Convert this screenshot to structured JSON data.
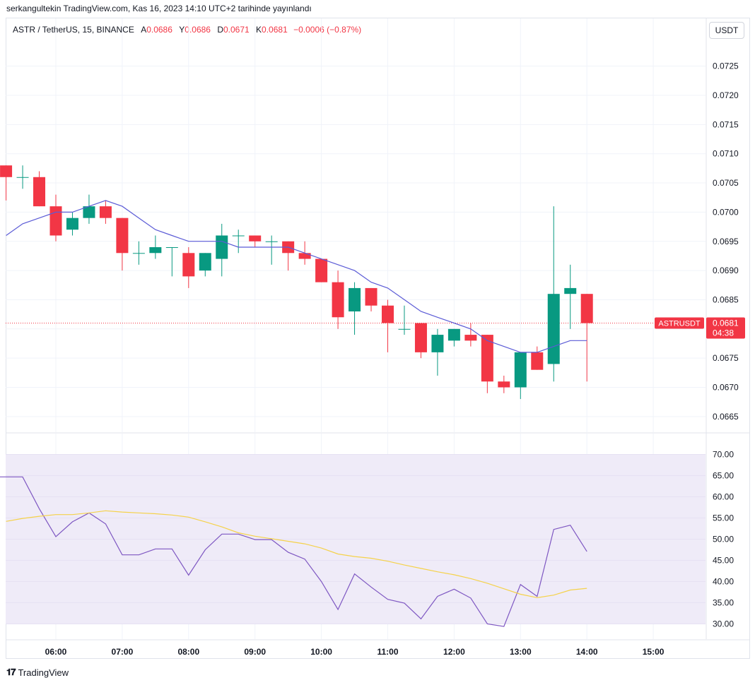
{
  "header": {
    "published": "serkangultekin TradingView.com, Kas 16, 2023 14:10 UTC+2 tarihinde yayınlandı",
    "symbol": "ASTR / TetherUS, 15, BINANCE",
    "o_label": "A",
    "o_value": "0.0686",
    "h_label": "Y",
    "h_value": "0.0686",
    "l_label": "D",
    "l_value": "0.0671",
    "c_label": "K",
    "c_value": "0.0681",
    "change": "−0.0006 (−0.87%)",
    "currency_button": "USDT"
  },
  "price_tag": {
    "symbol": "ASTRUSDT",
    "price": "0.0681",
    "countdown": "04:38"
  },
  "footer": {
    "brand": "TradingView"
  },
  "colors": {
    "up": "#089981",
    "down": "#f23645",
    "ma": "#5b5bd6",
    "rsi": "#7e57c2",
    "rsi_ma": "#f5d24a",
    "rsi_band": "#efebf8"
  },
  "chart_data": [
    {
      "type": "candlestick",
      "title": "ASTR / TetherUS, 15, BINANCE",
      "x_ticks": [
        "06:00",
        "07:00",
        "08:00",
        "09:00",
        "10:00",
        "11:00",
        "12:00",
        "13:00",
        "14:00",
        "15:00"
      ],
      "y_ticks": [
        "0.0665",
        "0.0670",
        "0.0675",
        "0.0680",
        "0.0685",
        "0.0690",
        "0.0695",
        "0.0700",
        "0.0705",
        "0.0710",
        "0.0715",
        "0.0720",
        "0.0725"
      ],
      "ylim": [
        0.0662,
        0.073
      ],
      "candles": [
        {
          "t": "05:15",
          "o": 0.0708,
          "h": 0.0708,
          "l": 0.0702,
          "c": 0.0706
        },
        {
          "t": "05:30",
          "o": 0.0706,
          "h": 0.0708,
          "l": 0.0704,
          "c": 0.0706
        },
        {
          "t": "05:45",
          "o": 0.0706,
          "h": 0.0707,
          "l": 0.0701,
          "c": 0.0701
        },
        {
          "t": "06:00",
          "o": 0.0701,
          "h": 0.0703,
          "l": 0.0695,
          "c": 0.0696
        },
        {
          "t": "06:15",
          "o": 0.0697,
          "h": 0.07,
          "l": 0.0696,
          "c": 0.0699
        },
        {
          "t": "06:30",
          "o": 0.0699,
          "h": 0.0703,
          "l": 0.0698,
          "c": 0.0701
        },
        {
          "t": "06:45",
          "o": 0.0701,
          "h": 0.0702,
          "l": 0.0698,
          "c": 0.0699
        },
        {
          "t": "07:00",
          "o": 0.0699,
          "h": 0.0699,
          "l": 0.069,
          "c": 0.0693
        },
        {
          "t": "07:15",
          "o": 0.0693,
          "h": 0.0695,
          "l": 0.0691,
          "c": 0.0693
        },
        {
          "t": "07:30",
          "o": 0.0693,
          "h": 0.0696,
          "l": 0.0692,
          "c": 0.0694
        },
        {
          "t": "07:45",
          "o": 0.0694,
          "h": 0.0694,
          "l": 0.0689,
          "c": 0.0694
        },
        {
          "t": "08:00",
          "o": 0.0693,
          "h": 0.0694,
          "l": 0.0687,
          "c": 0.0689
        },
        {
          "t": "08:15",
          "o": 0.069,
          "h": 0.0693,
          "l": 0.0689,
          "c": 0.0693
        },
        {
          "t": "08:30",
          "o": 0.0692,
          "h": 0.0698,
          "l": 0.0689,
          "c": 0.0696
        },
        {
          "t": "08:45",
          "o": 0.0696,
          "h": 0.0697,
          "l": 0.0693,
          "c": 0.0696
        },
        {
          "t": "09:00",
          "o": 0.0696,
          "h": 0.0696,
          "l": 0.0694,
          "c": 0.0695
        },
        {
          "t": "09:15",
          "o": 0.0695,
          "h": 0.0696,
          "l": 0.0691,
          "c": 0.0695
        },
        {
          "t": "09:30",
          "o": 0.0695,
          "h": 0.0695,
          "l": 0.069,
          "c": 0.0693
        },
        {
          "t": "09:45",
          "o": 0.0693,
          "h": 0.0695,
          "l": 0.0691,
          "c": 0.0692
        },
        {
          "t": "10:00",
          "o": 0.0692,
          "h": 0.0692,
          "l": 0.0688,
          "c": 0.0688
        },
        {
          "t": "10:15",
          "o": 0.0688,
          "h": 0.069,
          "l": 0.068,
          "c": 0.0682
        },
        {
          "t": "10:30",
          "o": 0.0683,
          "h": 0.0688,
          "l": 0.0679,
          "c": 0.0687
        },
        {
          "t": "10:45",
          "o": 0.0687,
          "h": 0.0687,
          "l": 0.0683,
          "c": 0.0684
        },
        {
          "t": "11:00",
          "o": 0.0684,
          "h": 0.0685,
          "l": 0.0676,
          "c": 0.0681
        },
        {
          "t": "11:15",
          "o": 0.068,
          "h": 0.0684,
          "l": 0.0679,
          "c": 0.068
        },
        {
          "t": "11:30",
          "o": 0.0681,
          "h": 0.0681,
          "l": 0.0675,
          "c": 0.0676
        },
        {
          "t": "11:45",
          "o": 0.0676,
          "h": 0.068,
          "l": 0.0672,
          "c": 0.0679
        },
        {
          "t": "12:00",
          "o": 0.0678,
          "h": 0.068,
          "l": 0.0677,
          "c": 0.068
        },
        {
          "t": "12:15",
          "o": 0.0679,
          "h": 0.0681,
          "l": 0.0677,
          "c": 0.0678
        },
        {
          "t": "12:30",
          "o": 0.0679,
          "h": 0.0679,
          "l": 0.0669,
          "c": 0.0671
        },
        {
          "t": "12:45",
          "o": 0.0671,
          "h": 0.0672,
          "l": 0.0669,
          "c": 0.067
        },
        {
          "t": "13:00",
          "o": 0.067,
          "h": 0.0676,
          "l": 0.0668,
          "c": 0.0676
        },
        {
          "t": "13:15",
          "o": 0.0676,
          "h": 0.0677,
          "l": 0.0673,
          "c": 0.0673
        },
        {
          "t": "13:30",
          "o": 0.0674,
          "h": 0.0701,
          "l": 0.0671,
          "c": 0.0686
        },
        {
          "t": "13:45",
          "o": 0.0686,
          "h": 0.0691,
          "l": 0.068,
          "c": 0.0687
        },
        {
          "t": "14:00",
          "o": 0.0686,
          "h": 0.0686,
          "l": 0.0671,
          "c": 0.0681
        }
      ],
      "ma": [
        0.0696,
        0.0698,
        0.0699,
        0.07,
        0.07,
        0.0701,
        0.0702,
        0.0701,
        0.0699,
        0.0697,
        0.0696,
        0.0695,
        0.0695,
        0.0695,
        0.0694,
        0.0694,
        0.0694,
        0.0694,
        0.0693,
        0.0692,
        0.0691,
        0.069,
        0.0688,
        0.0687,
        0.0685,
        0.0683,
        0.0682,
        0.0681,
        0.068,
        0.0678,
        0.0677,
        0.0676,
        0.0676,
        0.0677,
        0.0678,
        0.0678
      ]
    },
    {
      "type": "line",
      "x_ticks": [
        "06:00",
        "07:00",
        "08:00",
        "09:00",
        "10:00",
        "11:00",
        "12:00",
        "13:00",
        "14:00",
        "15:00"
      ],
      "y_ticks": [
        "30.00",
        "35.00",
        "40.00",
        "45.00",
        "50.00",
        "55.00",
        "60.00",
        "65.00",
        "70.00"
      ],
      "ylim": [
        27,
        72
      ],
      "band": [
        30,
        70
      ],
      "midline": 50,
      "series": [
        {
          "values": [
            64.7,
            64.7,
            57.2,
            50.6,
            54.1,
            56.2,
            53.6,
            46.3,
            46.3,
            47.7,
            47.7,
            41.5,
            47.5,
            51.2,
            51.2,
            49.9,
            49.9,
            46.9,
            45.3,
            40.0,
            33.4,
            41.8,
            38.7,
            35.8,
            34.9,
            31.2,
            36.5,
            38.2,
            36.1,
            30.0,
            29.4,
            39.3,
            36.5,
            52.3,
            53.3,
            47.1
          ]
        },
        {
          "values": [
            54.2,
            54.9,
            55.4,
            55.8,
            55.8,
            56.2,
            56.7,
            56.4,
            56.2,
            56.0,
            55.7,
            55.2,
            54.1,
            52.9,
            51.5,
            50.7,
            50.1,
            49.5,
            48.9,
            47.9,
            46.5,
            45.9,
            45.5,
            44.8,
            43.9,
            43.1,
            42.3,
            41.6,
            40.7,
            39.6,
            38.3,
            37.0,
            36.2,
            36.8,
            38.0,
            38.4
          ]
        }
      ]
    }
  ]
}
